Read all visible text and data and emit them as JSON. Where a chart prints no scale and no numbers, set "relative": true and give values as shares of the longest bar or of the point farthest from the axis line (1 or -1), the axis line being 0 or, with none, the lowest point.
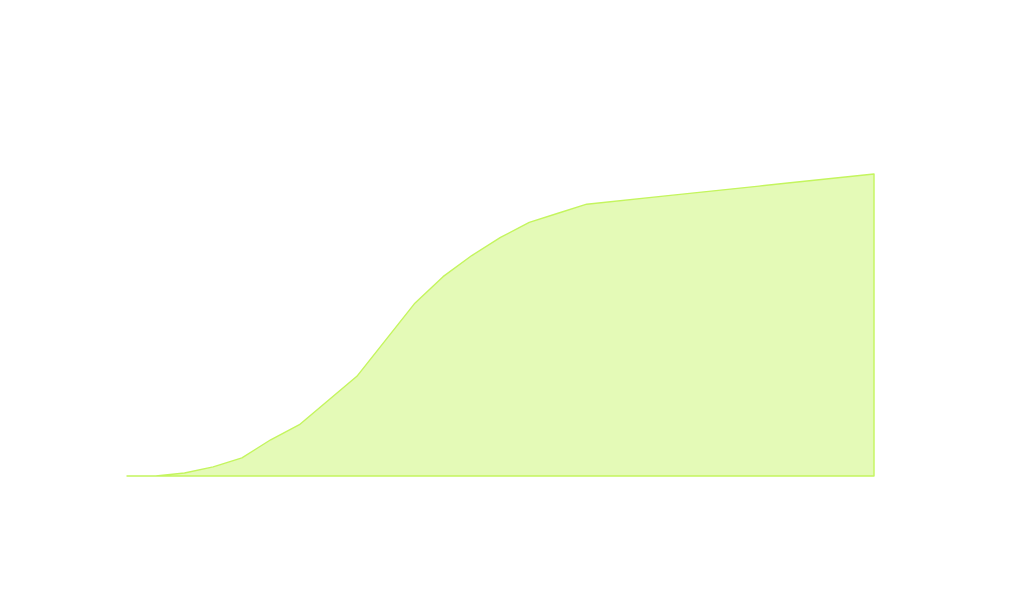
{
  "chart_data": {
    "type": "area",
    "relative": true,
    "categories": [
      null,
      null,
      null,
      null,
      null,
      null,
      null,
      null,
      null,
      null,
      null,
      null,
      null,
      null,
      null,
      null,
      null,
      null,
      null,
      null,
      null,
      null,
      null,
      null,
      null,
      null,
      null
    ],
    "series": [
      {
        "color": "#c4f55e",
        "values": [
          0,
          0.0,
          0.01,
          0.03,
          0.06,
          0.12,
          0.17,
          0.25,
          0.33,
          0.45,
          0.57,
          0.66,
          0.73,
          0.79,
          0.84,
          0.87,
          0.9,
          0.91,
          0.92,
          0.93,
          0.94,
          0.95,
          0.96,
          0.97,
          0.98,
          0.99,
          1
        ]
      }
    ]
  }
}
